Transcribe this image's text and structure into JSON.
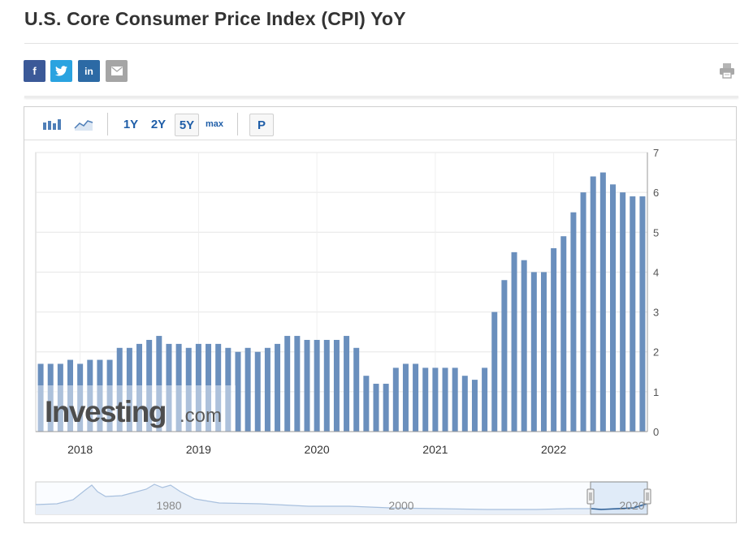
{
  "page": {
    "title": "U.S. Core Consumer Price Index (CPI) YoY"
  },
  "share": {
    "facebook": "f",
    "twitter": "t",
    "linkedin": "in"
  },
  "toolbar": {
    "r1y": "1Y",
    "r2y": "2Y",
    "r5y": "5Y",
    "rmax": "max",
    "p": "P"
  },
  "colors": {
    "bar": "#6a8fbd",
    "accent": "#1f5ea8",
    "grid": "#e6e6e6"
  },
  "watermark": {
    "brand": "Investing",
    "suffix": ".com"
  },
  "chart_data": {
    "type": "bar",
    "ylim": [
      0,
      7
    ],
    "yticks": [
      0,
      1,
      2,
      3,
      4,
      5,
      6,
      7
    ],
    "x_start": "2017-09",
    "xticks": [
      "2018",
      "2019",
      "2020",
      "2021",
      "2022"
    ],
    "values": [
      1.7,
      1.7,
      1.7,
      1.8,
      1.7,
      1.8,
      1.8,
      1.8,
      2.1,
      2.1,
      2.2,
      2.3,
      2.4,
      2.2,
      2.2,
      2.1,
      2.2,
      2.2,
      2.2,
      2.1,
      2.0,
      2.1,
      2.0,
      2.1,
      2.2,
      2.4,
      2.4,
      2.3,
      2.3,
      2.3,
      2.3,
      2.4,
      2.1,
      1.4,
      1.2,
      1.2,
      1.6,
      1.7,
      1.7,
      1.6,
      1.6,
      1.6,
      1.6,
      1.4,
      1.3,
      1.6,
      3.0,
      3.8,
      4.5,
      4.3,
      4.0,
      4.0,
      4.6,
      4.9,
      5.5,
      6.0,
      6.4,
      6.5,
      6.2,
      6.0,
      5.9,
      5.9
    ],
    "navigator": {
      "labels": [
        "1980",
        "2000",
        "2020"
      ]
    }
  }
}
